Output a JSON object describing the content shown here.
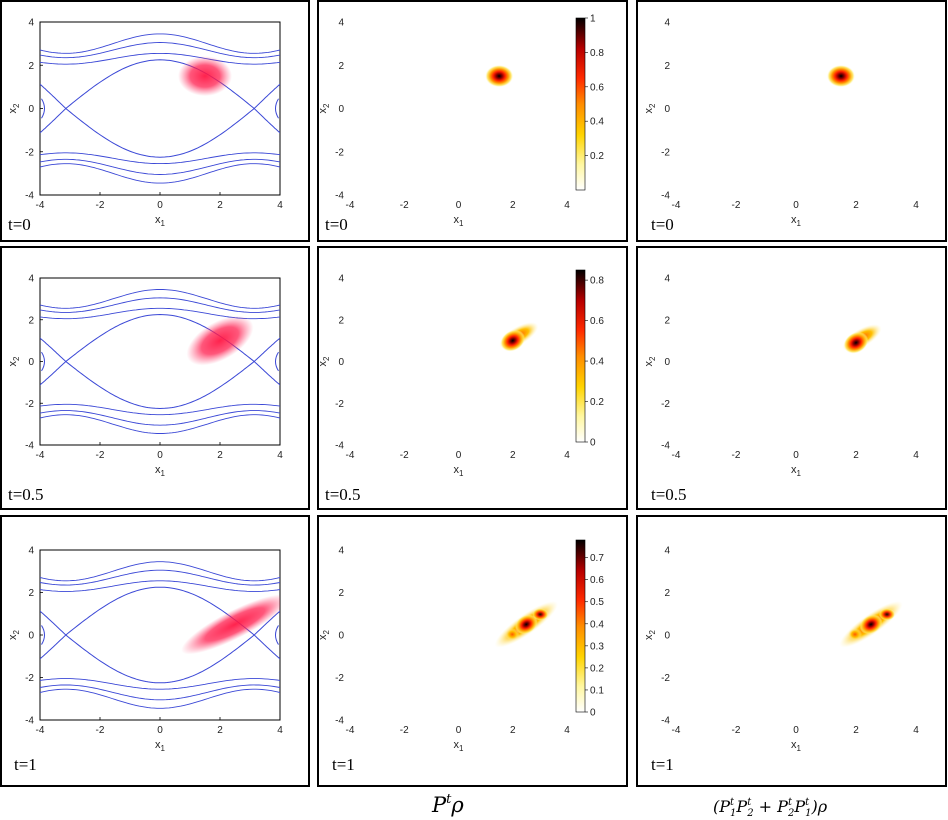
{
  "chart_data": {
    "type": "heatmap",
    "title": "",
    "xlabel": "x1",
    "ylabel": "x2",
    "xlim": [
      -4,
      4
    ],
    "ylim": [
      -4,
      4
    ],
    "xticks": [
      -4,
      -2,
      0,
      2,
      4
    ],
    "yticks": [
      -4,
      -2,
      0,
      2,
      4
    ],
    "rows": [
      {
        "t_label": "t=0",
        "density_peak": [
          1.5,
          1.5
        ],
        "colorbar": {
          "max": 1.0,
          "ticks": [
            0.2,
            0.4,
            0.6,
            0.8,
            1
          ]
        },
        "mixed_peak": [
          1.5,
          1.5
        ]
      },
      {
        "t_label": "t=0.5",
        "density_peak": [
          2.0,
          1.0
        ],
        "colorbar": {
          "max": 0.85,
          "ticks": [
            0,
            0.2,
            0.4,
            0.6,
            0.8
          ]
        },
        "mixed_peak": [
          2.0,
          0.9
        ]
      },
      {
        "t_label": "t=1",
        "density_peak": [
          2.5,
          0.5
        ],
        "colorbar": {
          "max": 0.78,
          "ticks": [
            0,
            0.1,
            0.2,
            0.3,
            0.4,
            0.5,
            0.6,
            0.7
          ]
        },
        "mixed_peak": [
          2.5,
          0.5
        ]
      }
    ],
    "phase_portrait": {
      "separatrix_halfwidth": 3.14159,
      "separatrix_peak": 2.25,
      "orbit_levels": [
        2.55,
        3.05,
        3.45
      ]
    },
    "columns": [
      {
        "caption": "P^t ρ"
      },
      {
        "caption": "(P1^t P2^t + P2^t P1^t) ρ"
      }
    ]
  },
  "captions": {
    "col2_main": "P",
    "col2_sup": "t",
    "col2_rho": "ρ",
    "col3_text": "(P",
    "col3_p1": "1",
    "col3_t": "t",
    "col3_p2": "P",
    "col3_s2": "2",
    "col3_plus": " + P",
    "col3_end": ")ρ"
  },
  "colors": {
    "orbit": "#3b48d6",
    "cloud": "#ff1744",
    "colormap": [
      "#ffffff",
      "#fff7a0",
      "#ffd400",
      "#ff8c00",
      "#ff2a00",
      "#b80000",
      "#000000"
    ]
  }
}
